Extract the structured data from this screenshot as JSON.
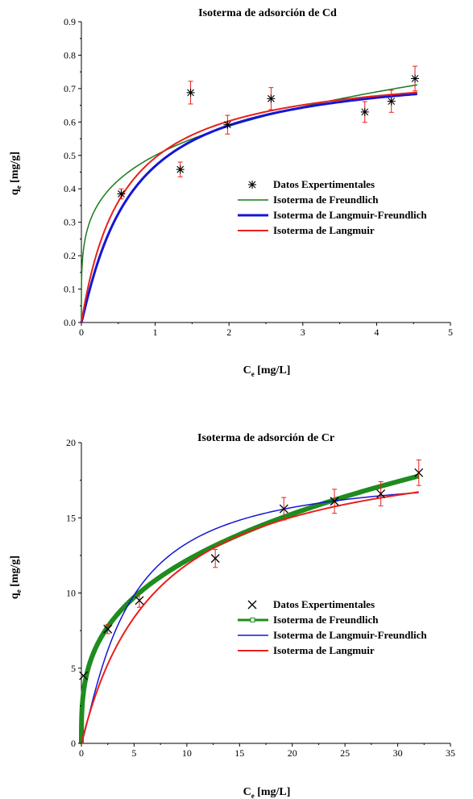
{
  "chart_data": [
    {
      "type": "scatter",
      "title": "Isoterma de adsorción de Cd",
      "xlabel": {
        "main": "C",
        "sub": "e",
        "rest": " [mg/L]"
      },
      "ylabel": {
        "main": "q",
        "sub": "e",
        "rest": " [mg/g]"
      },
      "xlim": [
        0,
        5
      ],
      "ylim": [
        0,
        0.9
      ],
      "xticks": [
        "0",
        "1",
        "2",
        "3",
        "4",
        "5"
      ],
      "yticks": [
        "0.0",
        "0.1",
        "0.2",
        "0.3",
        "0.4",
        "0.5",
        "0.6",
        "0.7",
        "0.8",
        "0.9"
      ],
      "grid": false,
      "legend_position": "center-right",
      "data_color": "#000000",
      "errorbar_color": "#e8201a",
      "marker": "asterisk",
      "points": [
        {
          "x": 0.54,
          "y": 0.385,
          "err": 0.015
        },
        {
          "x": 1.34,
          "y": 0.458,
          "err": 0.022
        },
        {
          "x": 1.48,
          "y": 0.688,
          "err": 0.034
        },
        {
          "x": 1.98,
          "y": 0.592,
          "err": 0.028
        },
        {
          "x": 2.57,
          "y": 0.67,
          "err": 0.033
        },
        {
          "x": 3.84,
          "y": 0.63,
          "err": 0.031
        },
        {
          "x": 4.2,
          "y": 0.662,
          "err": 0.033
        },
        {
          "x": 4.52,
          "y": 0.73,
          "err": 0.037
        }
      ],
      "legend_points_label": "Datos Expertimentales",
      "models": [
        {
          "name": "Isoterma de Freundlich",
          "color": "#1a7a1a",
          "width": 1.5,
          "kind": "freundlich",
          "params": {
            "K": 0.5,
            "n": 4.3
          }
        },
        {
          "name": "Isoterma de Langmuir-Freundlich",
          "color": "#1515d6",
          "width": 3,
          "kind": "sips",
          "params": {
            "qm": 0.77,
            "K": 1.5,
            "n": 1.08
          }
        },
        {
          "name": "Isoterma de Langmuir",
          "color": "#e8201a",
          "width": 2,
          "kind": "langmuir",
          "params": {
            "qm": 0.775,
            "K": 1.75
          }
        }
      ]
    },
    {
      "type": "scatter",
      "title": "Isoterma de adsorción de Cr",
      "xlabel": {
        "main": "C",
        "sub": "e",
        "rest": " [mg/L]"
      },
      "ylabel": {
        "main": "q",
        "sub": "e",
        "rest": " [mg/g]"
      },
      "xlim": [
        0,
        35
      ],
      "ylim": [
        0,
        20
      ],
      "xticks": [
        "0",
        "5",
        "10",
        "15",
        "20",
        "25",
        "30",
        "35"
      ],
      "yticks": [
        "0",
        "5",
        "10",
        "15",
        "20"
      ],
      "grid": false,
      "legend_position": "center-right",
      "data_color": "#000000",
      "errorbar_color": "#e8201a",
      "marker": "x",
      "points": [
        {
          "x": 0.2,
          "y": 4.5,
          "err": 0.0
        },
        {
          "x": 2.5,
          "y": 7.6,
          "err": 0.3
        },
        {
          "x": 5.5,
          "y": 9.5,
          "err": 0.45
        },
        {
          "x": 12.7,
          "y": 12.3,
          "err": 0.6
        },
        {
          "x": 19.2,
          "y": 15.6,
          "err": 0.75
        },
        {
          "x": 24.0,
          "y": 16.1,
          "err": 0.8
        },
        {
          "x": 28.4,
          "y": 16.6,
          "err": 0.8
        },
        {
          "x": 32.0,
          "y": 18.0,
          "err": 0.85
        }
      ],
      "legend_points_label": "Datos Expertimentales",
      "models": [
        {
          "name": "Isoterma de Freundlich",
          "color": "#1e8c1e",
          "width": 6,
          "kind": "freundlich",
          "params": {
            "K": 5.75,
            "n": 3.07
          }
        },
        {
          "name": "Isoterma de Langmuir-Freundlich",
          "color": "#1515d6",
          "width": 1.5,
          "kind": "sips",
          "params": {
            "qm": 18.2,
            "K": 0.23,
            "n": 1.2
          }
        },
        {
          "name": "Isoterma de Langmuir",
          "color": "#e8201a",
          "width": 2,
          "kind": "langmuir",
          "params": {
            "qm": 20.5,
            "K": 0.138
          }
        }
      ]
    }
  ]
}
